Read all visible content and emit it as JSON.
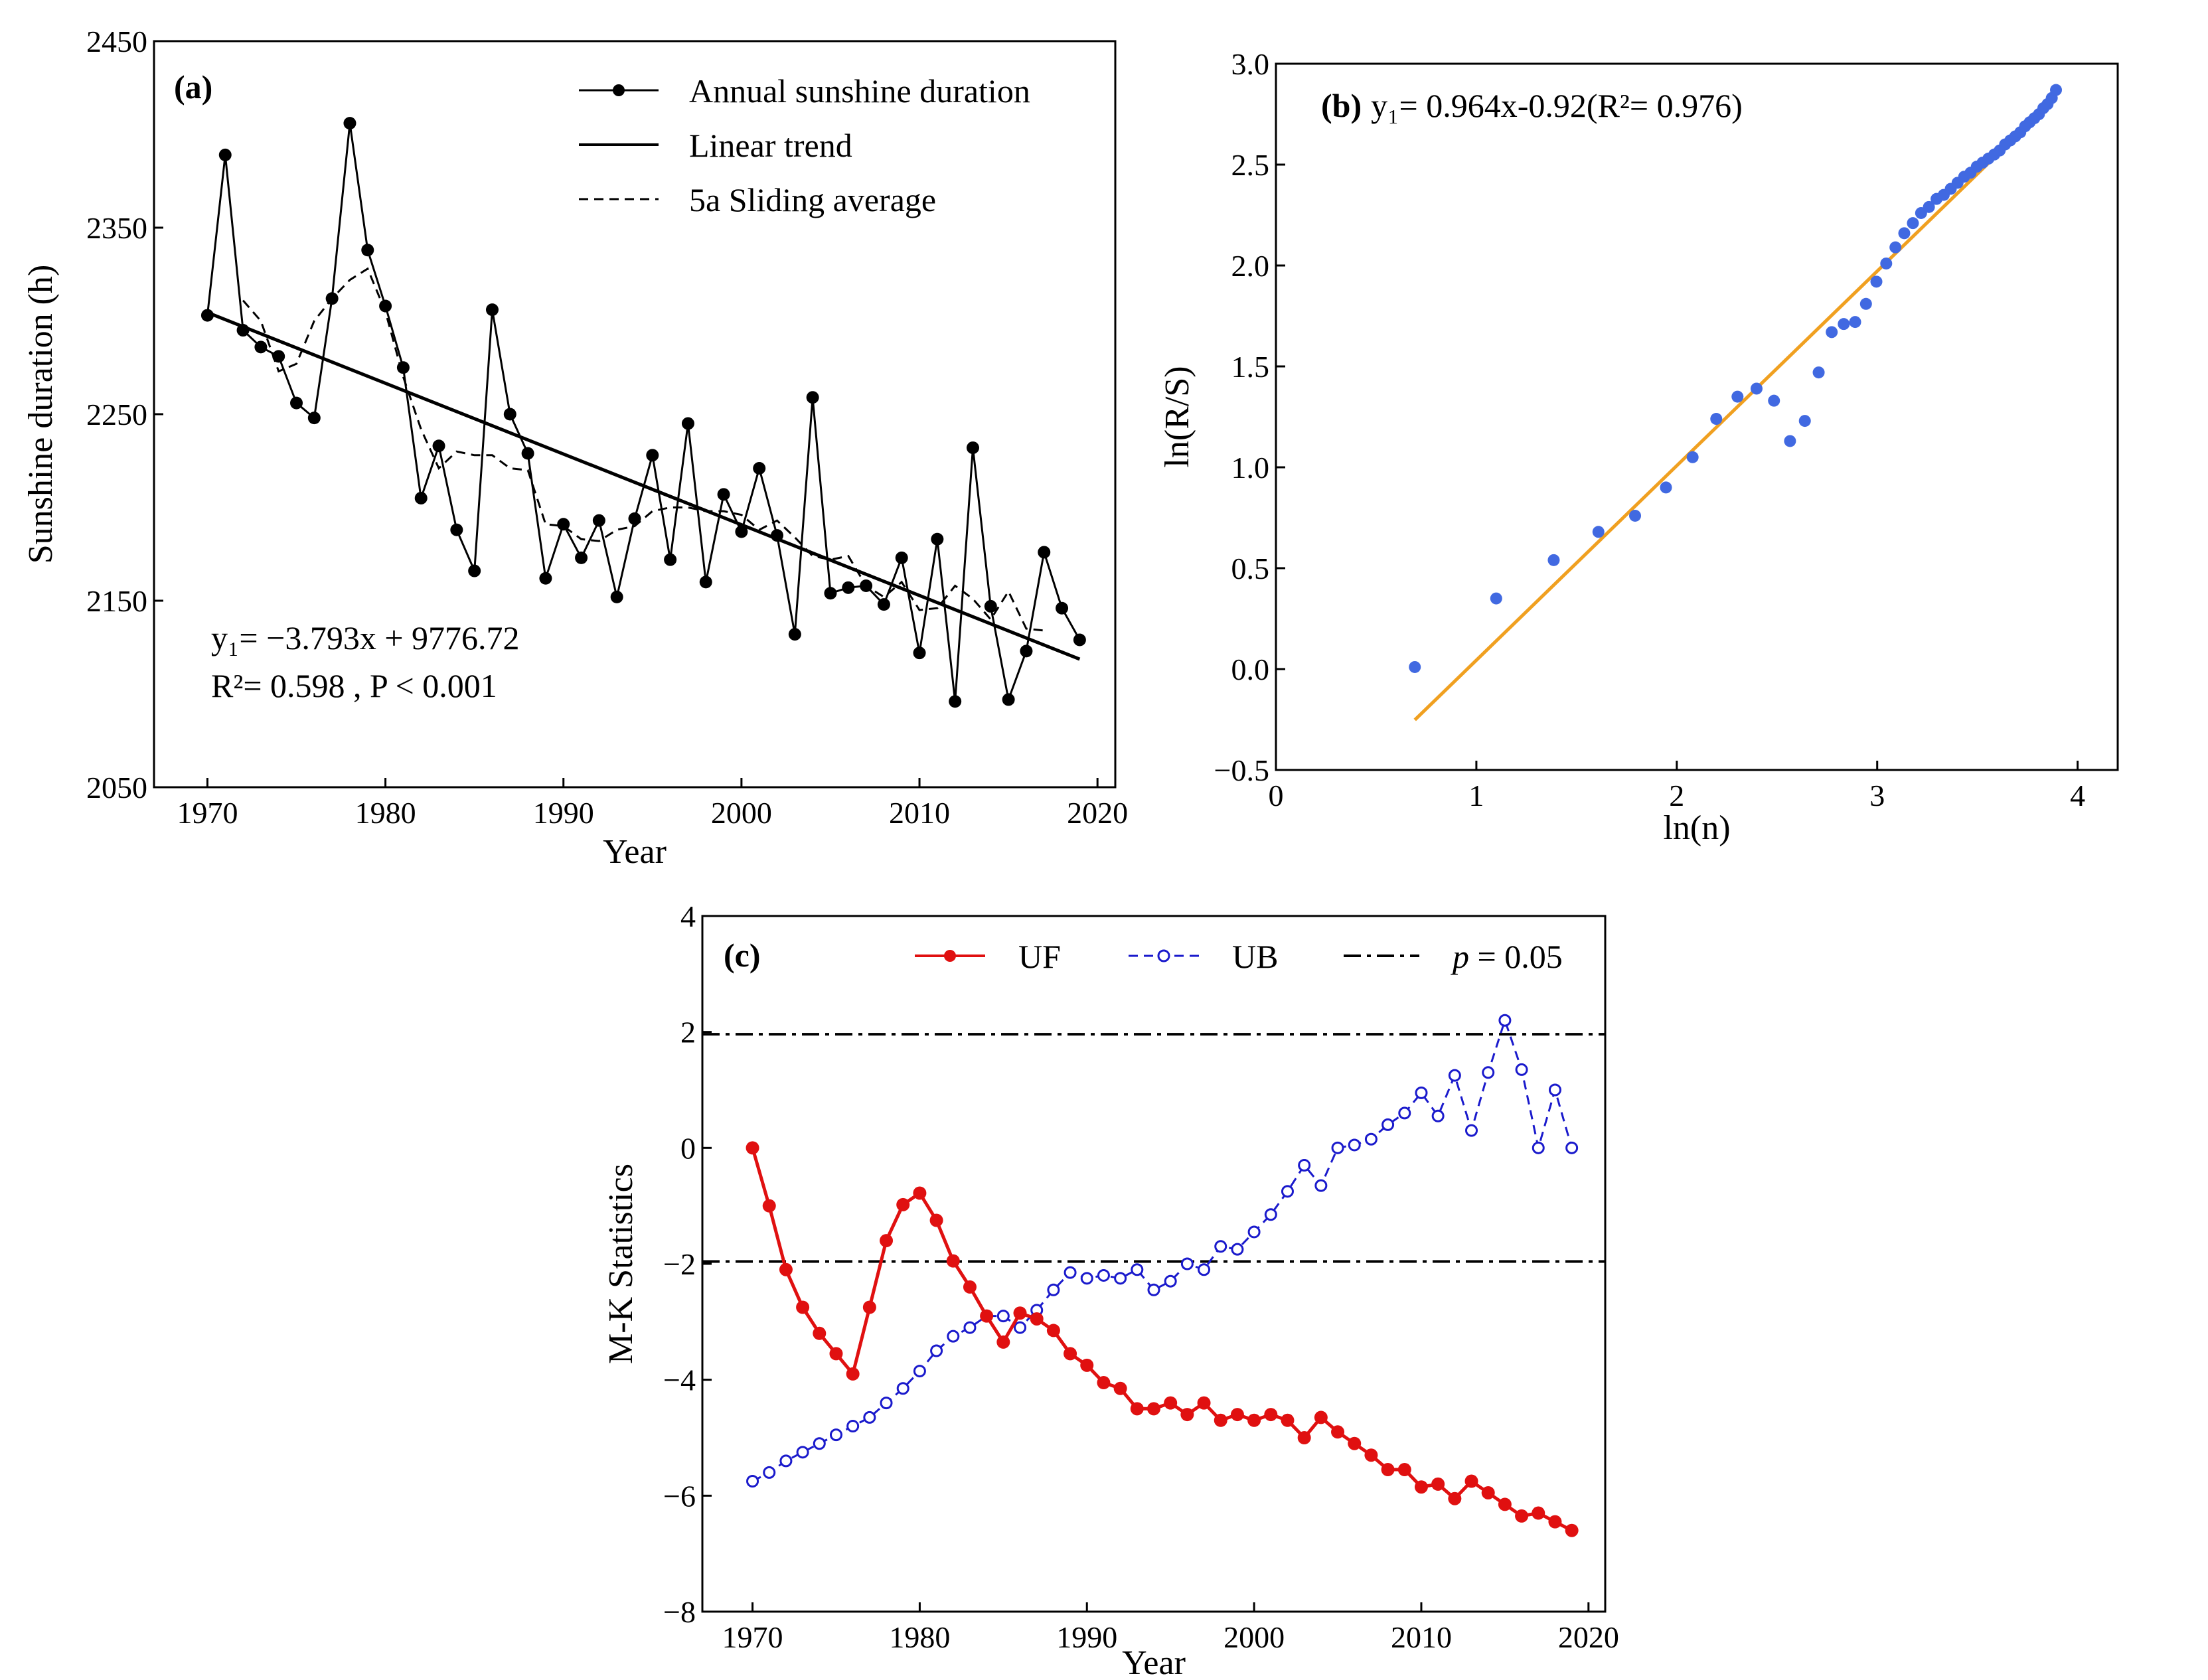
{
  "figure": {
    "background": "#ffffff"
  },
  "chart_data": [
    {
      "id": "a",
      "type": "line",
      "panel_label": "(a)",
      "xlabel": "Year",
      "ylabel": "Sunshine duration (h)",
      "xlim": [
        1967,
        2021
      ],
      "ylim": [
        2050,
        2450
      ],
      "xticks": [
        1970,
        1980,
        1990,
        2000,
        2010,
        2020
      ],
      "yticks": [
        2050,
        2150,
        2250,
        2350,
        2450
      ],
      "legend_position": "top-right",
      "series": [
        {
          "name": "Annual sunshine duration",
          "style": "line-dot",
          "color": "#000000",
          "x": [
            1970,
            1971,
            1972,
            1973,
            1974,
            1975,
            1976,
            1977,
            1978,
            1979,
            1980,
            1981,
            1982,
            1983,
            1984,
            1985,
            1986,
            1987,
            1988,
            1989,
            1990,
            1991,
            1992,
            1993,
            1994,
            1995,
            1996,
            1997,
            1998,
            1999,
            2000,
            2001,
            2002,
            2003,
            2004,
            2005,
            2006,
            2007,
            2008,
            2009,
            2010,
            2011,
            2012,
            2013,
            2014,
            2015,
            2016,
            2017,
            2018,
            2019
          ],
          "values": [
            2303,
            2389,
            2295,
            2286,
            2281,
            2256,
            2248,
            2312,
            2406,
            2338,
            2308,
            2275,
            2205,
            2233,
            2188,
            2166,
            2306,
            2250,
            2229,
            2162,
            2191,
            2173,
            2193,
            2152,
            2194,
            2228,
            2172,
            2245,
            2160,
            2207,
            2187,
            2221,
            2185,
            2132,
            2259,
            2154,
            2157,
            2158,
            2148,
            2173,
            2122,
            2183,
            2096,
            2232,
            2147,
            2097,
            2123,
            2176,
            2146,
            2129
          ]
        },
        {
          "name": "Linear trend",
          "style": "solid",
          "color": "#000000",
          "slope": -3.793,
          "intercept": 9776.72,
          "x_range": [
            1970,
            2019
          ]
        },
        {
          "name": "5a Sliding average",
          "style": "dashed",
          "color": "#000000",
          "x": [
            1972,
            1973,
            1974,
            1975,
            1976,
            1977,
            1978,
            1979,
            1980,
            1981,
            1982,
            1983,
            1984,
            1985,
            1986,
            1987,
            1988,
            1989,
            1990,
            1991,
            1992,
            1993,
            1994,
            1995,
            1996,
            1997,
            1998,
            1999,
            2000,
            2001,
            2002,
            2003,
            2004,
            2005,
            2006,
            2007,
            2008,
            2009,
            2010,
            2011,
            2012,
            2013,
            2014,
            2015,
            2016,
            2017
          ],
          "values": [
            2311,
            2300,
            2273,
            2277,
            2300,
            2312,
            2322,
            2328,
            2305,
            2270,
            2242,
            2221,
            2230,
            2228,
            2228,
            2221,
            2220,
            2191,
            2190,
            2183,
            2182,
            2188,
            2190,
            2198,
            2200,
            2200,
            2198,
            2198,
            2196,
            2188,
            2193,
            2184,
            2174,
            2172,
            2174,
            2158,
            2152,
            2160,
            2145,
            2146,
            2158,
            2151,
            2140,
            2155,
            2135,
            2134
          ]
        }
      ],
      "annotations": [
        "y₁= −3.793x + 9776.72",
        "R²= 0.598 , P < 0.001"
      ]
    },
    {
      "id": "b",
      "type": "scatter",
      "panel_label": "(b)",
      "xlabel": "ln(n)",
      "ylabel": "ln(R/S)",
      "xlim": [
        0,
        4.2
      ],
      "ylim": [
        -0.5,
        3.0
      ],
      "xticks": [
        0,
        1,
        2,
        3,
        4
      ],
      "yticks": [
        -0.5,
        0.0,
        0.5,
        1.0,
        1.5,
        2.0,
        2.5,
        3.0
      ],
      "xtick_labels": [
        "0",
        "1",
        "2",
        "3",
        "4"
      ],
      "ytick_labels": [
        "−0.5",
        "0.0",
        "0.5",
        "1.0",
        "1.5",
        "2.0",
        "2.5",
        "3.0"
      ],
      "series": [
        {
          "name": "ln(R/S) points",
          "color": "#4169e1",
          "x": [
            0.693,
            1.099,
            1.386,
            1.609,
            1.792,
            1.946,
            2.079,
            2.197,
            2.303,
            2.398,
            2.485,
            2.565,
            2.639,
            2.708,
            2.773,
            2.833,
            2.89,
            2.944,
            2.996,
            3.045,
            3.091,
            3.135,
            3.178,
            3.219,
            3.258,
            3.296,
            3.332,
            3.367,
            3.401,
            3.434,
            3.466,
            3.497,
            3.526,
            3.555,
            3.584,
            3.611,
            3.638,
            3.664,
            3.689,
            3.714,
            3.738,
            3.761,
            3.784,
            3.807,
            3.829,
            3.85,
            3.871,
            3.892
          ],
          "values": [
            0.01,
            0.35,
            0.54,
            0.68,
            0.76,
            0.9,
            1.05,
            1.24,
            1.35,
            1.39,
            1.33,
            1.13,
            1.23,
            1.47,
            1.67,
            1.71,
            1.72,
            1.81,
            1.92,
            2.01,
            2.09,
            2.16,
            2.21,
            2.26,
            2.29,
            2.33,
            2.35,
            2.38,
            2.41,
            2.44,
            2.46,
            2.49,
            2.51,
            2.53,
            2.55,
            2.57,
            2.6,
            2.62,
            2.64,
            2.66,
            2.69,
            2.71,
            2.73,
            2.75,
            2.78,
            2.8,
            2.83,
            2.87
          ]
        },
        {
          "name": "Fit line",
          "color": "#f0a020",
          "slope": 0.964,
          "intercept": -0.92,
          "x_range": [
            0.693,
            3.892
          ]
        }
      ],
      "annotation_prefix": "(b)",
      "annotation": "y₁= 0.964x-0.92(R²= 0.976)"
    },
    {
      "id": "c",
      "type": "line",
      "panel_label": "(c)",
      "xlabel": "Year",
      "ylabel": "M-K Statistics",
      "xlim": [
        1967,
        2021
      ],
      "ylim": [
        -8,
        4
      ],
      "xticks": [
        1970,
        1980,
        1990,
        2000,
        2010,
        2020
      ],
      "yticks": [
        -8,
        -6,
        -4,
        -2,
        0,
        2,
        4
      ],
      "ytick_labels": [
        "−8",
        "−6",
        "−4",
        "−2",
        "0",
        "2",
        "4"
      ],
      "legend_position": "top",
      "series": [
        {
          "name": "UF",
          "style": "solid-filled-dot",
          "color": "#e01010",
          "x": [
            1970,
            1971,
            1972,
            1973,
            1974,
            1975,
            1976,
            1977,
            1978,
            1979,
            1980,
            1981,
            1982,
            1983,
            1984,
            1985,
            1986,
            1987,
            1988,
            1989,
            1990,
            1991,
            1992,
            1993,
            1994,
            1995,
            1996,
            1997,
            1998,
            1999,
            2000,
            2001,
            2002,
            2003,
            2004,
            2005,
            2006,
            2007,
            2008,
            2009,
            2010,
            2011,
            2012,
            2013,
            2014,
            2015,
            2016,
            2017,
            2018,
            2019
          ],
          "values": [
            0.0,
            -1.0,
            -2.1,
            -2.75,
            -3.2,
            -3.55,
            -3.9,
            -2.75,
            -1.6,
            -0.98,
            -0.78,
            -1.25,
            -1.95,
            -2.4,
            -2.9,
            -3.35,
            -2.85,
            -2.95,
            -3.15,
            -3.55,
            -3.75,
            -4.05,
            -4.15,
            -4.5,
            -4.5,
            -4.4,
            -4.6,
            -4.4,
            -4.7,
            -4.6,
            -4.7,
            -4.6,
            -4.7,
            -5.0,
            -4.65,
            -4.9,
            -5.1,
            -5.3,
            -5.55,
            -5.55,
            -5.85,
            -5.8,
            -6.05,
            -5.75,
            -5.95,
            -6.15,
            -6.35,
            -6.3,
            -6.45,
            -6.6
          ]
        },
        {
          "name": "UB",
          "style": "dashed-open-dot",
          "color": "#1a1acc",
          "x": [
            1970,
            1971,
            1972,
            1973,
            1974,
            1975,
            1976,
            1977,
            1978,
            1979,
            1980,
            1981,
            1982,
            1983,
            1984,
            1985,
            1986,
            1987,
            1988,
            1989,
            1990,
            1991,
            1992,
            1993,
            1994,
            1995,
            1996,
            1997,
            1998,
            1999,
            2000,
            2001,
            2002,
            2003,
            2004,
            2005,
            2006,
            2007,
            2008,
            2009,
            2010,
            2011,
            2012,
            2013,
            2014,
            2015,
            2016,
            2017,
            2018,
            2019
          ],
          "values": [
            -5.75,
            -5.6,
            -5.4,
            -5.25,
            -5.1,
            -4.95,
            -4.8,
            -4.65,
            -4.4,
            -4.15,
            -3.85,
            -3.5,
            -3.25,
            -3.1,
            -2.9,
            -2.9,
            -3.1,
            -2.8,
            -2.45,
            -2.15,
            -2.25,
            -2.2,
            -2.25,
            -2.1,
            -2.45,
            -2.3,
            -2.0,
            -2.1,
            -1.7,
            -1.75,
            -1.45,
            -1.15,
            -0.75,
            -0.3,
            -0.65,
            0.0,
            0.05,
            0.15,
            0.4,
            0.6,
            0.95,
            0.55,
            1.25,
            0.3,
            1.3,
            2.2,
            1.35,
            0.0,
            1.0,
            0.0
          ]
        },
        {
          "name": "p = 0.05",
          "style": "dash-dot",
          "color": "#000000",
          "levels": [
            1.96,
            -1.96
          ]
        }
      ],
      "legend": {
        "uf": "UF",
        "ub": "UB",
        "p_prefix": "p",
        "p_suffix": " = 0.05"
      }
    }
  ]
}
